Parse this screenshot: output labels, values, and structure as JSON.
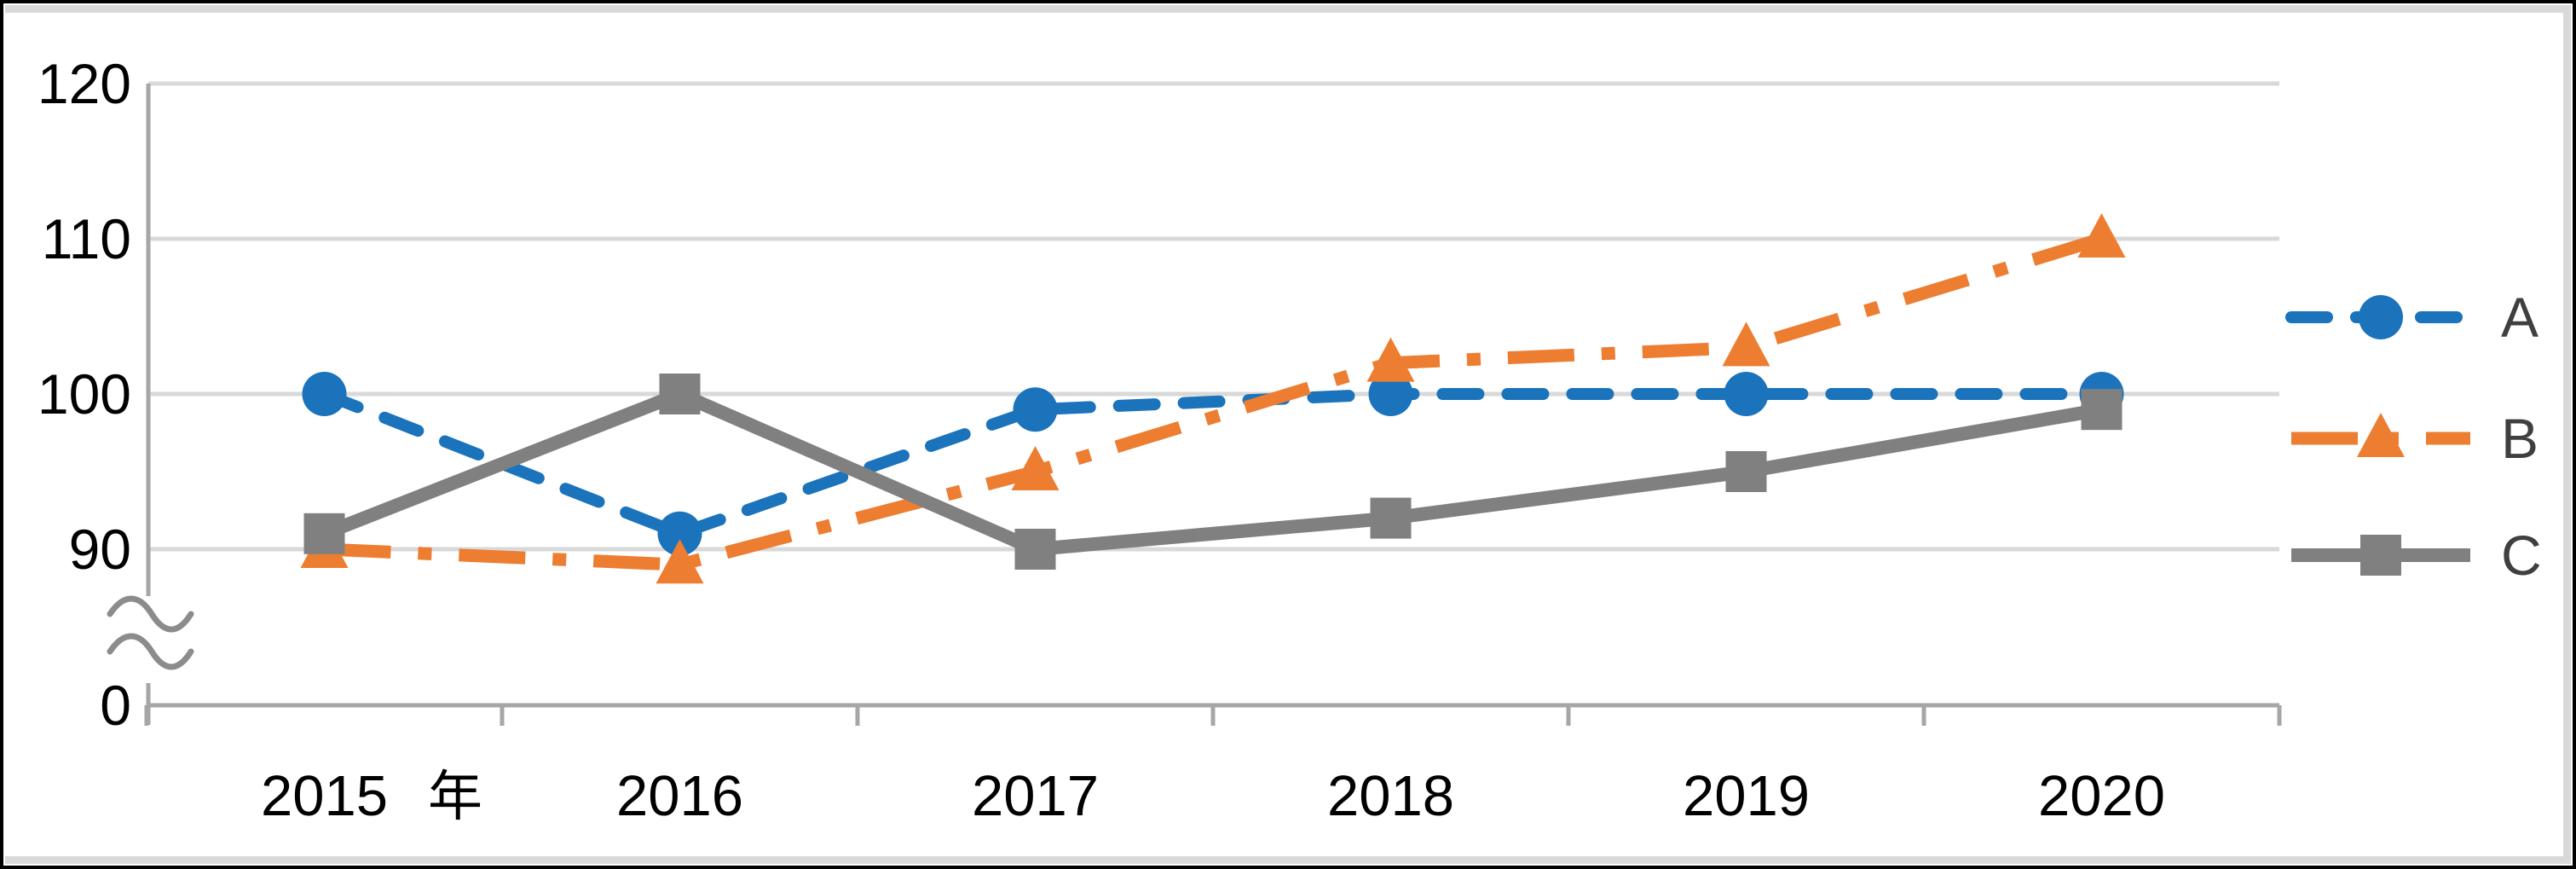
{
  "chart_data": {
    "type": "line",
    "title": "",
    "xlabel": "",
    "ylabel": "",
    "x_unit_label": "年",
    "categories": [
      "2015",
      "2016",
      "2017",
      "2018",
      "2019",
      "2020"
    ],
    "series": [
      {
        "name": "A",
        "values": [
          100,
          91,
          99,
          100,
          100,
          100
        ],
        "color": "#1B73BC",
        "line_style": "dashed",
        "marker": "circle"
      },
      {
        "name": "B",
        "values": [
          90,
          89,
          95,
          102,
          103,
          110
        ],
        "color": "#ED7D31",
        "line_style": "dashdot",
        "marker": "triangle"
      },
      {
        "name": "C",
        "values": [
          91,
          100,
          90,
          92,
          95,
          99
        ],
        "color": "#808080",
        "line_style": "solid",
        "marker": "square"
      }
    ],
    "y_ticks": [
      "0",
      "90",
      "100",
      "110",
      "120"
    ],
    "axis_break_between": [
      "0",
      "90"
    ],
    "legend": [
      "A",
      "B",
      "C"
    ],
    "legend_position": "right",
    "grid": true
  },
  "style": {
    "gridline_color": "#D9D9D9",
    "axis_color": "#A6A6A6",
    "break_symbol_color": "#8C8C8C",
    "tick_label_color": "#000000",
    "legend_text_color": "#3F3F3F",
    "chart_border_color": "#D9D9D9",
    "outer_border_color": "#000000",
    "background_color": "#FFFFFF"
  }
}
